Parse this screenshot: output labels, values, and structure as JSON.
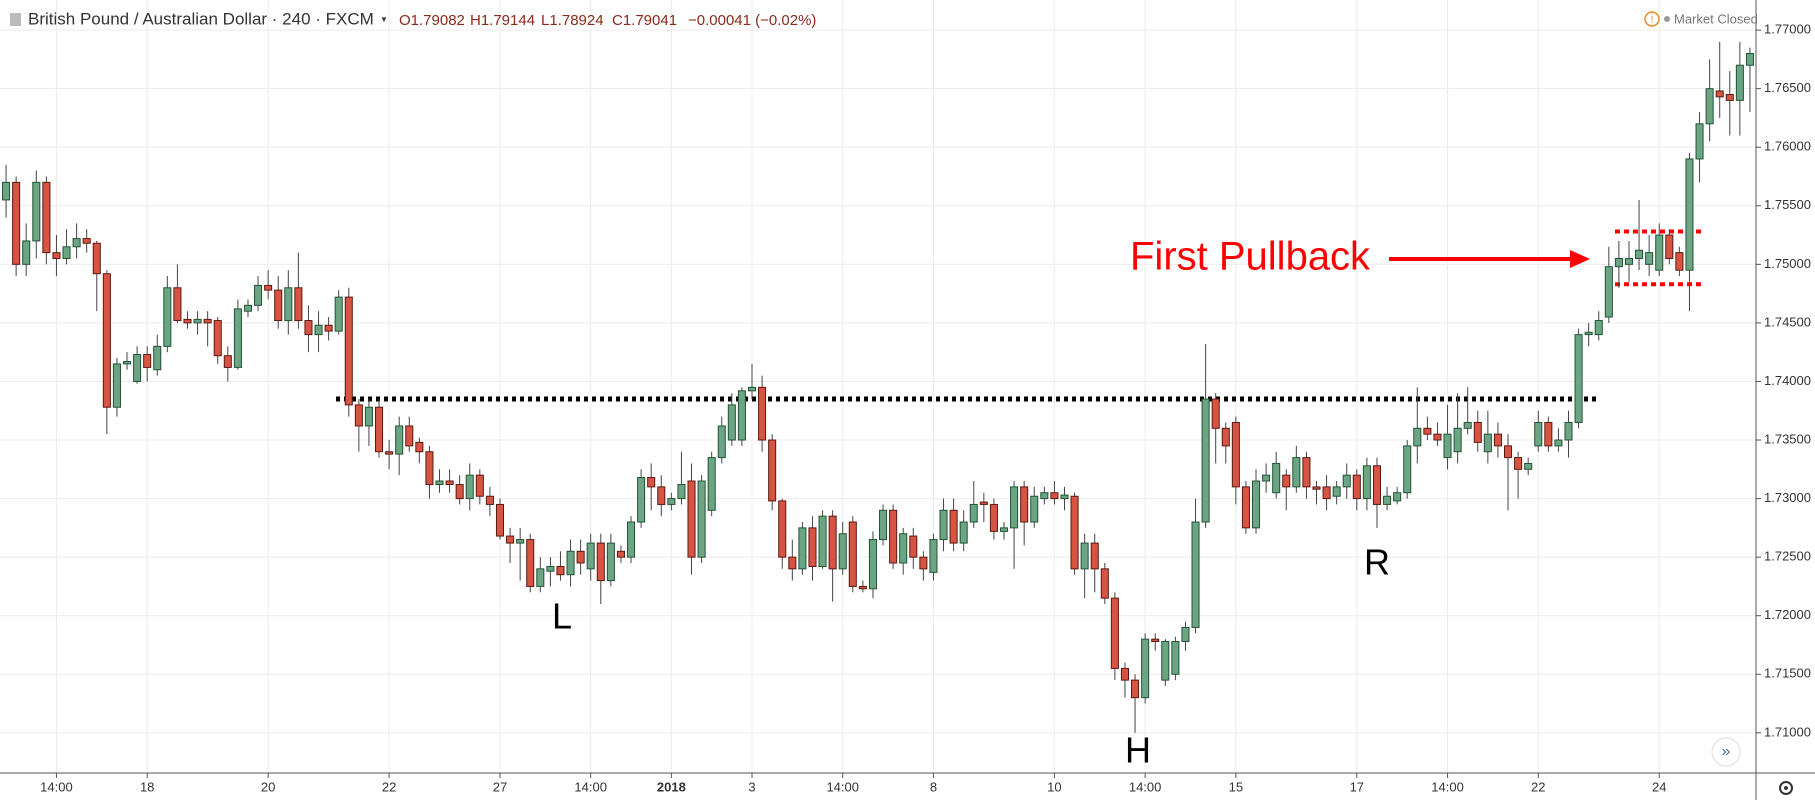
{
  "header": {
    "symbol": "British Pound / Australian Dollar · 240 · FXCM",
    "open": "O1.79082",
    "high": "H1.79144",
    "low": "L1.78924",
    "close": "C1.79041",
    "change": "−0.00041 (−0.02%)",
    "status": "Market Closed"
  },
  "chart_data": {
    "type": "candlestick",
    "open": [
      1.7555,
      1.757,
      1.75,
      1.752,
      1.757,
      1.751,
      1.7505,
      1.7515,
      1.7522,
      1.7518,
      1.7492,
      1.7378,
      1.7415,
      1.74,
      1.7423,
      1.741,
      1.743,
      1.748,
      1.7453,
      1.745,
      1.7453,
      1.7452,
      1.7422,
      1.7412,
      1.746,
      1.7465,
      1.7482,
      1.7478,
      1.7452,
      1.748,
      1.7452,
      1.744,
      1.7448,
      1.7443,
      1.7472,
      1.738,
      1.7362,
      1.7378,
      1.734,
      1.7338,
      1.7362,
      1.7348,
      1.734,
      1.7312,
      1.7315,
      1.7312,
      1.73,
      1.732,
      1.7302,
      1.7295,
      1.7268,
      1.7262,
      1.7265,
      1.7225,
      1.7238,
      1.7242,
      1.7235,
      1.7255,
      1.724,
      1.7262,
      1.723,
      1.7255,
      1.725,
      1.728,
      1.7318,
      1.731,
      1.7295,
      1.73,
      1.7315,
      1.725,
      1.729,
      1.7335,
      1.735,
      1.735,
      1.7392,
      1.7395,
      1.735,
      1.7298,
      1.725,
      1.724,
      1.7275,
      1.7242,
      1.7285,
      1.724,
      1.728,
      1.7225,
      1.7223,
      1.7265,
      1.729,
      1.7245,
      1.7268,
      1.725,
      1.7237,
      1.7265,
      1.729,
      1.7262,
      1.728,
      1.7297,
      1.7295,
      1.7272,
      1.7275,
      1.731,
      1.728,
      1.73,
      1.7305,
      1.73,
      1.7302,
      1.724,
      1.7262,
      1.724,
      1.7215,
      1.7155,
      1.7145,
      1.713,
      1.718,
      1.7145,
      1.715,
      1.7178,
      1.719,
      1.728,
      1.7385,
      1.736,
      1.7365,
      1.731,
      1.7275,
      1.7315,
      1.7305,
      1.732,
      1.731,
      1.7335,
      1.731,
      1.731,
      1.7302,
      1.731,
      1.732,
      1.73,
      1.7328,
      1.7295,
      1.7298,
      1.7305,
      1.7345,
      1.736,
      1.7355,
      1.7335,
      1.734,
      1.736,
      1.7365,
      1.734,
      1.7355,
      1.7345,
      1.7335,
      1.7325,
      1.7345,
      1.7365,
      1.7345,
      1.735,
      1.7365,
      1.744,
      1.744,
      1.7455,
      1.7498,
      1.75,
      1.7505,
      1.75,
      1.7495,
      1.7525,
      1.751,
      1.7495,
      1.759,
      1.762,
      1.7648,
      1.7645,
      1.764,
      1.767
    ],
    "high": [
      1.7585,
      1.7575,
      1.7535,
      1.758,
      1.7575,
      1.7525,
      1.753,
      1.7535,
      1.753,
      1.752,
      1.7495,
      1.742,
      1.7425,
      1.743,
      1.743,
      1.744,
      1.749,
      1.75,
      1.746,
      1.746,
      1.746,
      1.7455,
      1.743,
      1.747,
      1.747,
      1.749,
      1.7495,
      1.749,
      1.7495,
      1.751,
      1.7465,
      1.746,
      1.7455,
      1.7478,
      1.748,
      1.7385,
      1.7385,
      1.7385,
      1.735,
      1.737,
      1.737,
      1.7352,
      1.7345,
      1.7325,
      1.7325,
      1.732,
      1.733,
      1.7325,
      1.731,
      1.73,
      1.7275,
      1.7275,
      1.727,
      1.725,
      1.725,
      1.7255,
      1.7265,
      1.7265,
      1.727,
      1.727,
      1.727,
      1.726,
      1.7285,
      1.7325,
      1.733,
      1.732,
      1.7305,
      1.734,
      1.733,
      1.732,
      1.734,
      1.737,
      1.739,
      1.7395,
      1.7415,
      1.7405,
      1.7355,
      1.73,
      1.7265,
      1.728,
      1.7285,
      1.729,
      1.729,
      1.728,
      1.7285,
      1.723,
      1.7272,
      1.7295,
      1.7295,
      1.7275,
      1.7275,
      1.7255,
      1.727,
      1.73,
      1.73,
      1.729,
      1.7315,
      1.7305,
      1.73,
      1.728,
      1.7315,
      1.7315,
      1.731,
      1.731,
      1.7315,
      1.731,
      1.7305,
      1.727,
      1.727,
      1.7245,
      1.722,
      1.716,
      1.715,
      1.7185,
      1.7185,
      1.718,
      1.7182,
      1.7195,
      1.73,
      1.7432,
      1.739,
      1.7365,
      1.737,
      1.7315,
      1.7325,
      1.733,
      1.734,
      1.7325,
      1.7345,
      1.734,
      1.7315,
      1.732,
      1.7315,
      1.733,
      1.7325,
      1.7335,
      1.7335,
      1.731,
      1.731,
      1.735,
      1.7395,
      1.737,
      1.7365,
      1.738,
      1.739,
      1.7395,
      1.7375,
      1.7375,
      1.7365,
      1.7355,
      1.734,
      1.7335,
      1.7375,
      1.737,
      1.736,
      1.7375,
      1.7445,
      1.745,
      1.746,
      1.7515,
      1.752,
      1.752,
      1.7555,
      1.7525,
      1.7535,
      1.753,
      1.7515,
      1.7595,
      1.763,
      1.7675,
      1.769,
      1.7665,
      1.769,
      1.7685
    ],
    "low": [
      1.754,
      1.749,
      1.749,
      1.7505,
      1.75,
      1.749,
      1.75,
      1.7505,
      1.751,
      1.746,
      1.7355,
      1.737,
      1.741,
      1.7398,
      1.74,
      1.7405,
      1.7425,
      1.745,
      1.7445,
      1.744,
      1.743,
      1.7415,
      1.74,
      1.741,
      1.7455,
      1.746,
      1.747,
      1.7445,
      1.744,
      1.7445,
      1.7425,
      1.7425,
      1.7435,
      1.744,
      1.737,
      1.734,
      1.7345,
      1.7335,
      1.7325,
      1.732,
      1.734,
      1.733,
      1.73,
      1.7305,
      1.7305,
      1.7295,
      1.729,
      1.7295,
      1.7285,
      1.7265,
      1.7245,
      1.723,
      1.722,
      1.722,
      1.7225,
      1.723,
      1.7225,
      1.7235,
      1.723,
      1.721,
      1.7225,
      1.7245,
      1.7245,
      1.7275,
      1.729,
      1.7285,
      1.729,
      1.7295,
      1.7235,
      1.7245,
      1.7285,
      1.733,
      1.7345,
      1.7345,
      1.7385,
      1.734,
      1.729,
      1.724,
      1.723,
      1.7235,
      1.723,
      1.724,
      1.7212,
      1.7235,
      1.722,
      1.722,
      1.7215,
      1.726,
      1.724,
      1.7235,
      1.724,
      1.723,
      1.723,
      1.7255,
      1.7255,
      1.7255,
      1.7275,
      1.728,
      1.7265,
      1.7265,
      1.724,
      1.726,
      1.7275,
      1.7295,
      1.7295,
      1.729,
      1.7235,
      1.7215,
      1.722,
      1.721,
      1.7145,
      1.713,
      1.71,
      1.7125,
      1.717,
      1.714,
      1.7145,
      1.717,
      1.7185,
      1.7275,
      1.733,
      1.733,
      1.7295,
      1.727,
      1.727,
      1.7305,
      1.73,
      1.729,
      1.7305,
      1.73,
      1.7295,
      1.729,
      1.7295,
      1.73,
      1.729,
      1.729,
      1.7275,
      1.729,
      1.7295,
      1.73,
      1.733,
      1.735,
      1.7345,
      1.7325,
      1.733,
      1.7355,
      1.734,
      1.733,
      1.7335,
      1.729,
      1.73,
      1.732,
      1.734,
      1.734,
      1.734,
      1.7335,
      1.736,
      1.743,
      1.7435,
      1.745,
      1.748,
      1.7485,
      1.7495,
      1.749,
      1.749,
      1.75,
      1.749,
      1.746,
      1.757,
      1.7605,
      1.7625,
      1.761,
      1.761,
      1.763
    ],
    "close": [
      1.757,
      1.75,
      1.752,
      1.757,
      1.751,
      1.7505,
      1.7515,
      1.7522,
      1.7518,
      1.7492,
      1.7378,
      1.7415,
      1.7417,
      1.7423,
      1.7412,
      1.743,
      1.748,
      1.7452,
      1.745,
      1.7453,
      1.745,
      1.7422,
      1.7412,
      1.7462,
      1.7465,
      1.7482,
      1.7478,
      1.7452,
      1.748,
      1.7452,
      1.744,
      1.7448,
      1.7443,
      1.7472,
      1.738,
      1.7362,
      1.7378,
      1.734,
      1.7338,
      1.7362,
      1.7345,
      1.734,
      1.7312,
      1.7315,
      1.7312,
      1.73,
      1.732,
      1.7302,
      1.7295,
      1.7268,
      1.7262,
      1.7265,
      1.7225,
      1.724,
      1.7242,
      1.7235,
      1.7255,
      1.7245,
      1.7262,
      1.723,
      1.7262,
      1.725,
      1.728,
      1.7318,
      1.731,
      1.7295,
      1.73,
      1.7312,
      1.725,
      1.7315,
      1.7335,
      1.7362,
      1.738,
      1.7392,
      1.7395,
      1.735,
      1.7298,
      1.725,
      1.724,
      1.7275,
      1.7242,
      1.7285,
      1.724,
      1.727,
      1.7225,
      1.7223,
      1.7265,
      1.729,
      1.7245,
      1.727,
      1.725,
      1.724,
      1.7265,
      1.729,
      1.7262,
      1.728,
      1.7295,
      1.7295,
      1.7272,
      1.7275,
      1.731,
      1.728,
      1.7302,
      1.7305,
      1.73,
      1.7303,
      1.724,
      1.7262,
      1.724,
      1.7215,
      1.7155,
      1.7145,
      1.713,
      1.718,
      1.7178,
      1.7178,
      1.7178,
      1.719,
      1.728,
      1.7385,
      1.736,
      1.7345,
      1.731,
      1.7275,
      1.7315,
      1.732,
      1.733,
      1.731,
      1.7335,
      1.731,
      1.7308,
      1.73,
      1.731,
      1.732,
      1.73,
      1.7328,
      1.7295,
      1.7302,
      1.7305,
      1.7345,
      1.736,
      1.7355,
      1.735,
      1.7355,
      1.736,
      1.7365,
      1.7348,
      1.7355,
      1.7345,
      1.7335,
      1.7325,
      1.733,
      1.7365,
      1.7345,
      1.735,
      1.7365,
      1.744,
      1.7442,
      1.7452,
      1.7498,
      1.7505,
      1.7505,
      1.7512,
      1.751,
      1.7525,
      1.7505,
      1.7495,
      1.759,
      1.762,
      1.765,
      1.7643,
      1.764,
      1.767,
      1.768
    ],
    "up_color": "#6ba583",
    "down_color": "#d75442",
    "xlim": [
      -0.6,
      173.6
    ],
    "xticks": [
      {
        "value": 5,
        "label": "14:00"
      },
      {
        "value": 14,
        "label": "18"
      },
      {
        "value": 26,
        "label": "20"
      },
      {
        "value": 38,
        "label": "22"
      },
      {
        "value": 49,
        "label": "27"
      },
      {
        "value": 58,
        "label": "14:00"
      },
      {
        "value": 66,
        "label": "2018"
      },
      {
        "value": 74,
        "label": "3"
      },
      {
        "value": 83,
        "label": "14:00"
      },
      {
        "value": 92,
        "label": "8"
      },
      {
        "value": 104,
        "label": "10"
      },
      {
        "value": 113,
        "label": "14:00"
      },
      {
        "value": 122,
        "label": "15"
      },
      {
        "value": 134,
        "label": "17"
      },
      {
        "value": 143,
        "label": "14:00"
      },
      {
        "value": 152,
        "label": "22"
      },
      {
        "value": 164,
        "label": "24"
      }
    ],
    "ylim": [
      1.70657,
      1.77257
    ],
    "yticks": [
      {
        "value": 1.71,
        "label": "1.71000"
      },
      {
        "value": 1.715,
        "label": "1.71500"
      },
      {
        "value": 1.72,
        "label": "1.72000"
      },
      {
        "value": 1.725,
        "label": "1.72500"
      },
      {
        "value": 1.73,
        "label": "1.73000"
      },
      {
        "value": 1.735,
        "label": "1.73500"
      },
      {
        "value": 1.74,
        "label": "1.74000"
      },
      {
        "value": 1.745,
        "label": "1.74500"
      },
      {
        "value": 1.75,
        "label": "1.75000"
      },
      {
        "value": 1.755,
        "label": "1.75500"
      },
      {
        "value": 1.76,
        "label": "1.76000"
      },
      {
        "value": 1.765,
        "label": "1.76500"
      },
      {
        "value": 1.77,
        "label": "1.77000"
      }
    ],
    "grid": true,
    "levels": [
      {
        "value": 1.7385,
        "color": "#000000"
      },
      {
        "value": 1.7528,
        "color": "#ff0000"
      },
      {
        "value": 1.7483,
        "color": "#ff0000"
      }
    ],
    "annotations": [
      "L",
      "H",
      "R",
      "First Pullback"
    ]
  }
}
